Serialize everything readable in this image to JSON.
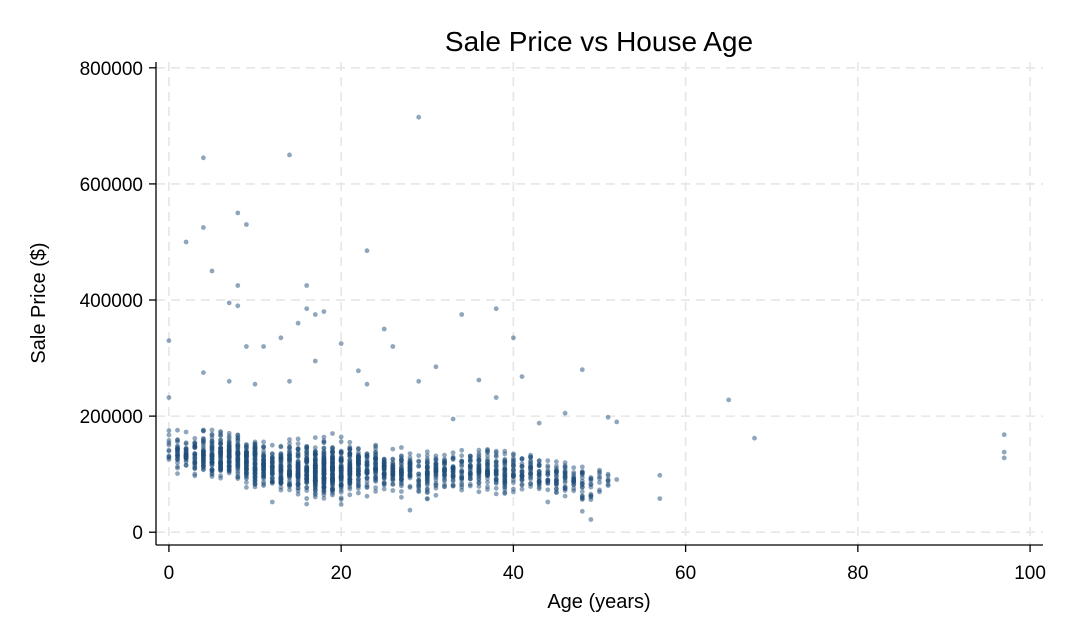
{
  "chart_data": {
    "type": "scatter",
    "title": "Sale Price vs House Age",
    "xlabel": "Age (years)",
    "ylabel": "Sale Price ($)",
    "xlim": [
      -1.5,
      101.5
    ],
    "ylim": [
      -22000,
      810000
    ],
    "xticks": [
      0,
      20,
      40,
      60,
      80,
      100
    ],
    "yticks": [
      0,
      200000,
      400000,
      600000,
      800000
    ],
    "grid": true,
    "marker_color": "#1f4e79",
    "marker_opacity": 0.5,
    "outliers": [
      [
        29,
        715000
      ],
      [
        4,
        645000
      ],
      [
        14,
        650000
      ],
      [
        8,
        550000
      ],
      [
        9,
        530000
      ],
      [
        4,
        525000
      ],
      [
        2,
        500000
      ],
      [
        23,
        485000
      ],
      [
        5,
        450000
      ],
      [
        8,
        425000
      ],
      [
        16,
        425000
      ],
      [
        7,
        395000
      ],
      [
        8,
        390000
      ],
      [
        16,
        385000
      ],
      [
        38,
        385000
      ],
      [
        17,
        375000
      ],
      [
        34,
        375000
      ],
      [
        18,
        380000
      ],
      [
        15,
        360000
      ],
      [
        25,
        350000
      ],
      [
        40,
        335000
      ],
      [
        0,
        330000
      ],
      [
        11,
        320000
      ],
      [
        9,
        320000
      ],
      [
        13,
        335000
      ],
      [
        26,
        320000
      ],
      [
        20,
        325000
      ],
      [
        4,
        275000
      ],
      [
        7,
        260000
      ],
      [
        14,
        260000
      ],
      [
        23,
        255000
      ],
      [
        22,
        278000
      ],
      [
        29,
        260000
      ],
      [
        36,
        262000
      ],
      [
        41,
        268000
      ],
      [
        48,
        280000
      ],
      [
        65,
        228000
      ],
      [
        68,
        162000
      ],
      [
        97,
        168000
      ],
      [
        97,
        138000
      ],
      [
        97,
        128000
      ],
      [
        57,
        98000
      ],
      [
        57,
        58000
      ],
      [
        49,
        22000
      ],
      [
        28,
        38000
      ],
      [
        0,
        232000
      ],
      [
        10,
        255000
      ],
      [
        17,
        295000
      ],
      [
        31,
        285000
      ],
      [
        38,
        232000
      ],
      [
        46,
        205000
      ],
      [
        51,
        198000
      ],
      [
        52,
        190000
      ],
      [
        43,
        188000
      ],
      [
        33,
        195000
      ],
      [
        12,
        52000
      ],
      [
        20,
        48000
      ],
      [
        44,
        52000
      ],
      [
        48,
        36000
      ],
      [
        30,
        58000
      ]
    ],
    "bands": [
      [
        0,
        1,
        100000,
        195000,
        25
      ],
      [
        1,
        3,
        95000,
        185000,
        50
      ],
      [
        3,
        5,
        90000,
        195000,
        75
      ],
      [
        5,
        8,
        80000,
        200000,
        160
      ],
      [
        8,
        11,
        70000,
        190000,
        170
      ],
      [
        11,
        14,
        65000,
        175000,
        130
      ],
      [
        14,
        16,
        55000,
        185000,
        120
      ],
      [
        16,
        19,
        45000,
        190000,
        260
      ],
      [
        19,
        22,
        55000,
        180000,
        190
      ],
      [
        22,
        25,
        60000,
        175000,
        130
      ],
      [
        25,
        28,
        60000,
        165000,
        100
      ],
      [
        28,
        31,
        55000,
        160000,
        90
      ],
      [
        31,
        34,
        65000,
        160000,
        80
      ],
      [
        34,
        37,
        60000,
        170000,
        90
      ],
      [
        37,
        40,
        60000,
        165000,
        90
      ],
      [
        40,
        43,
        60000,
        160000,
        80
      ],
      [
        43,
        46,
        55000,
        150000,
        60
      ],
      [
        46,
        48,
        55000,
        140000,
        40
      ],
      [
        48,
        50,
        45000,
        130000,
        25
      ],
      [
        50,
        52,
        70000,
        110000,
        10
      ]
    ]
  }
}
